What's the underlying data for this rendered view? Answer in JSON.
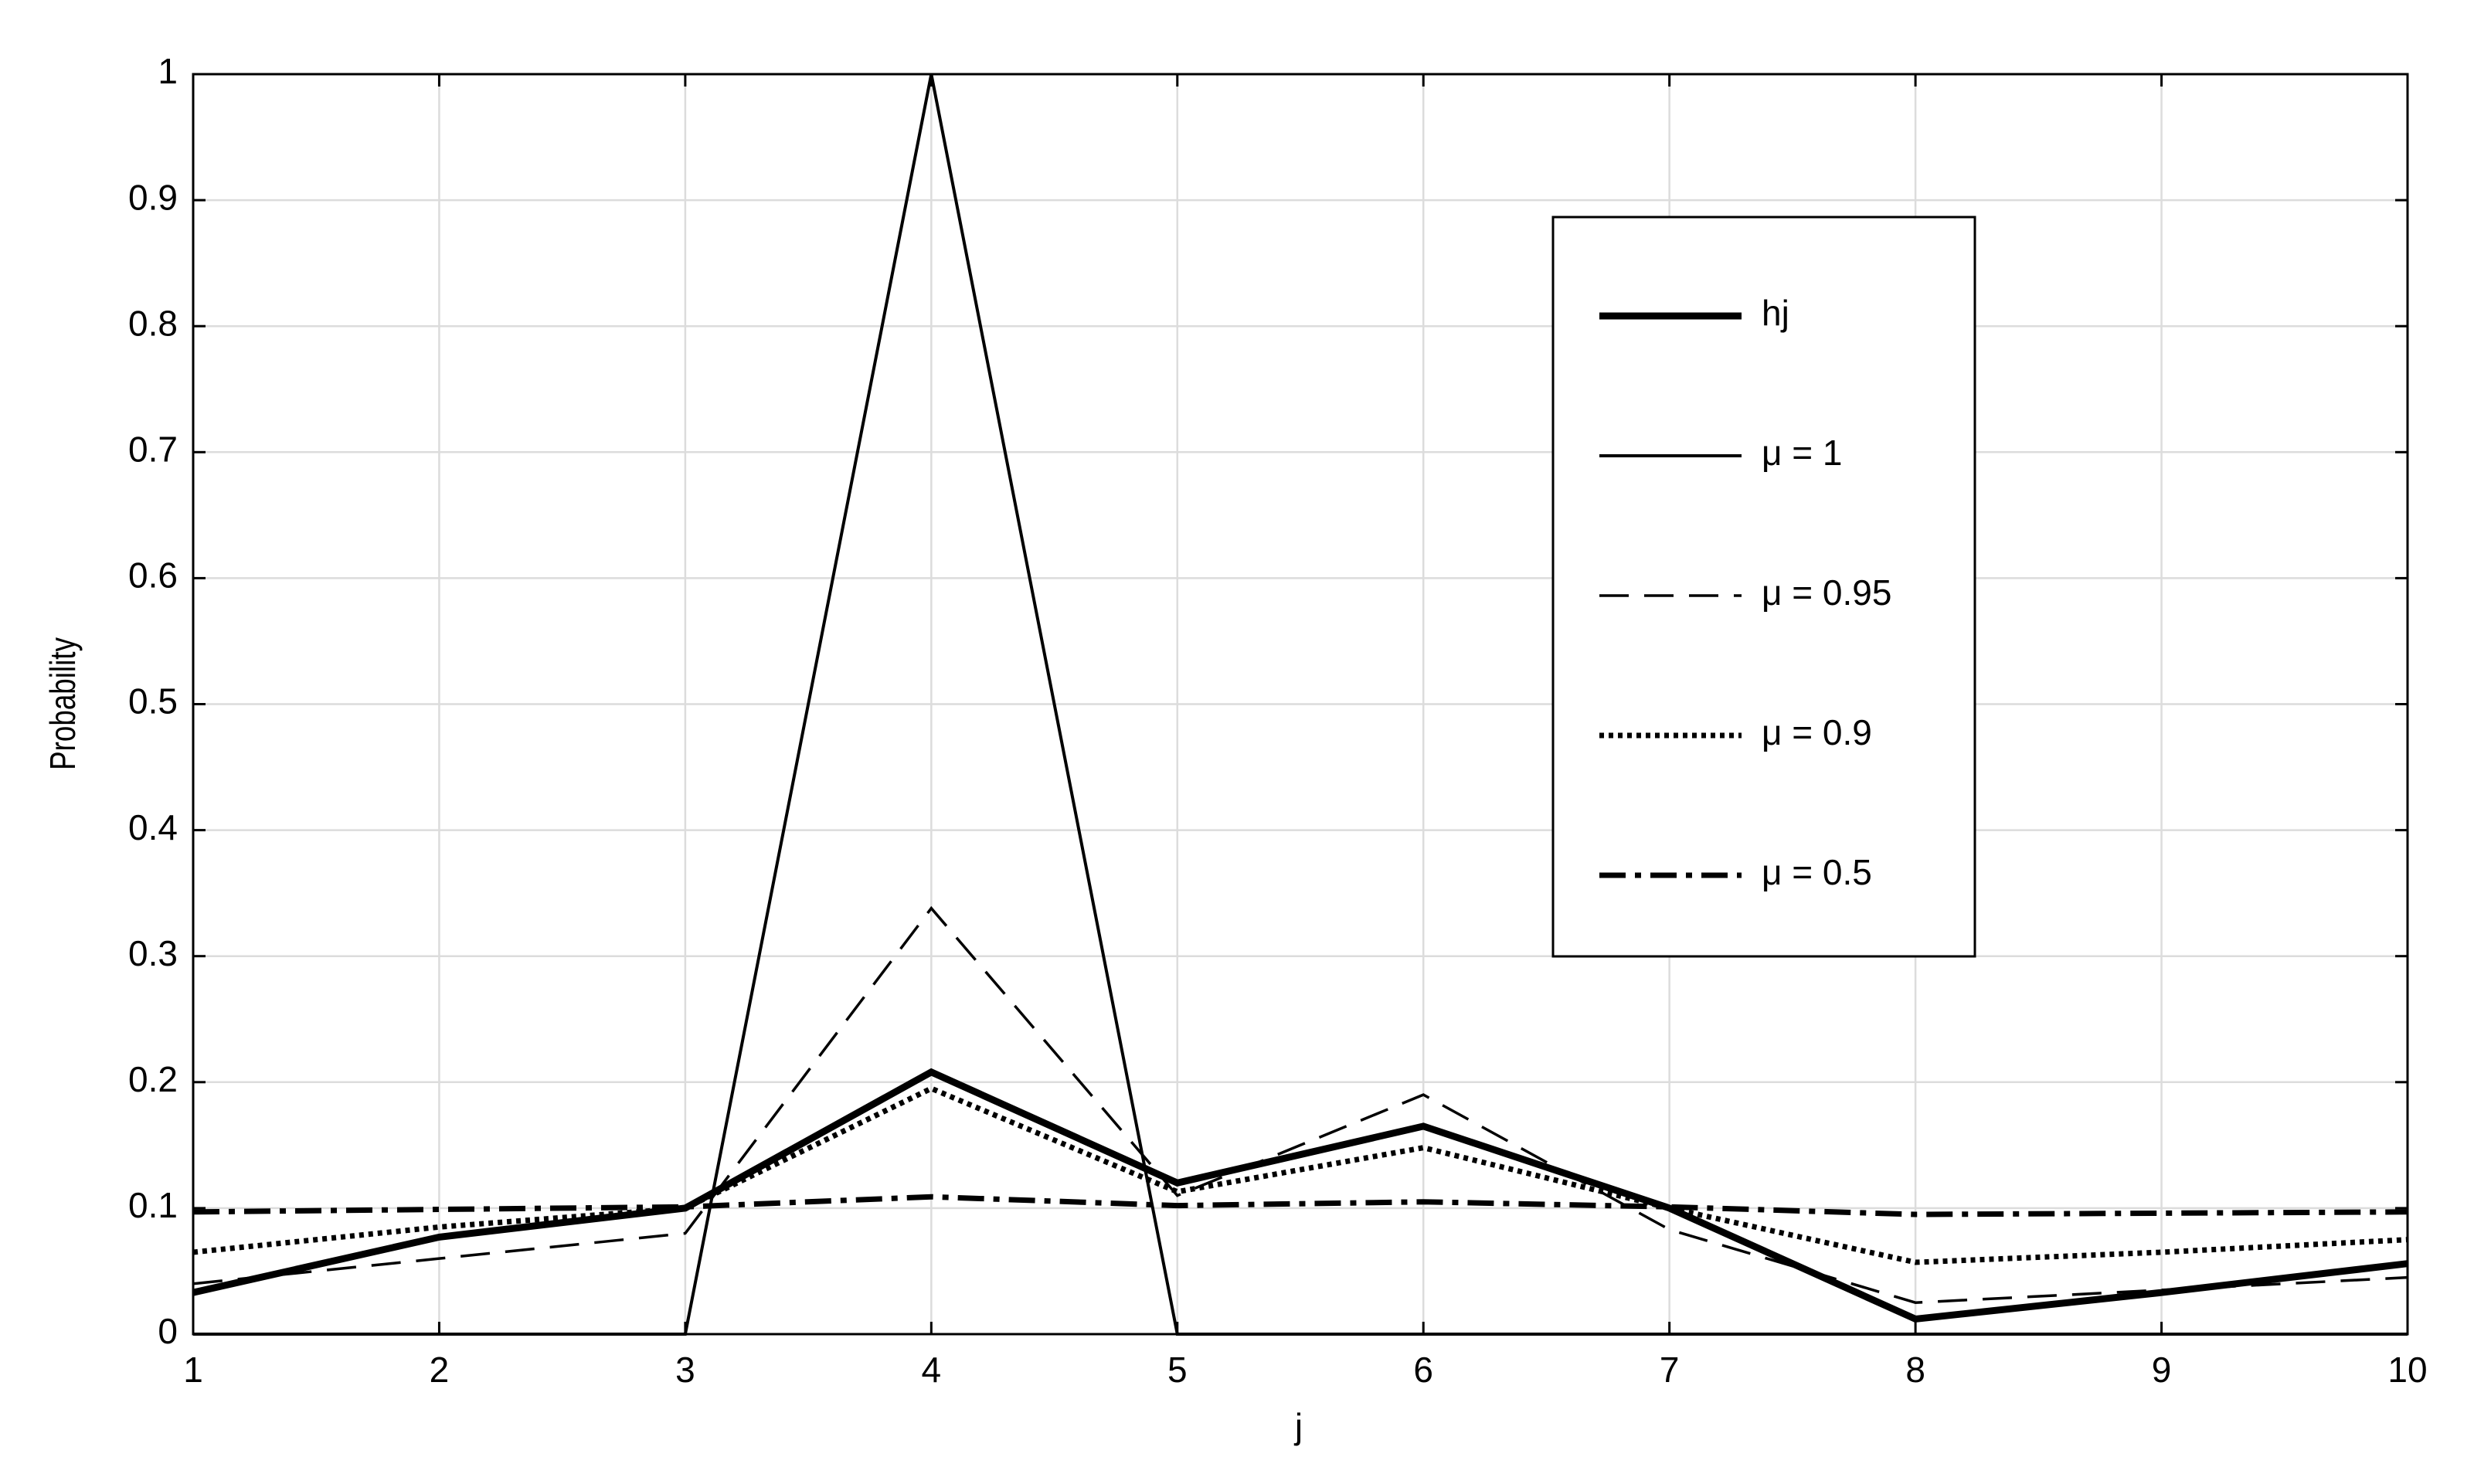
{
  "chart_data": {
    "type": "line",
    "x": [
      1,
      2,
      3,
      4,
      5,
      6,
      7,
      8,
      9,
      10
    ],
    "xlabel": "j",
    "ylabel": "Probability",
    "xlim": [
      1,
      10
    ],
    "xticks": [
      1,
      2,
      3,
      4,
      5,
      6,
      7,
      8,
      9,
      10
    ],
    "ylim": [
      0,
      1
    ],
    "yticks": [
      0,
      0.1,
      0.2,
      0.3,
      0.4,
      0.5,
      0.6,
      0.7,
      0.8,
      0.9,
      1
    ],
    "grid": true,
    "legend": "upper right",
    "series": [
      {
        "name": "hj",
        "color": "#000000",
        "values": [
          0.033,
          0.077,
          0.1,
          0.208,
          0.12,
          0.165,
          0.1,
          0.012,
          0.033,
          0.056
        ]
      },
      {
        "name": "μ = 1",
        "color": "#000000",
        "values": [
          0,
          0,
          0,
          1,
          0,
          0,
          0,
          0,
          0,
          0
        ]
      },
      {
        "name": "μ = 0.95",
        "color": "#000000",
        "values": [
          0.04,
          0.06,
          0.08,
          0.338,
          0.11,
          0.19,
          0.083,
          0.025,
          0.035,
          0.045
        ]
      },
      {
        "name": "μ = 0.9",
        "color": "#000000",
        "values": [
          0.065,
          0.085,
          0.1,
          0.195,
          0.113,
          0.148,
          0.1,
          0.057,
          0.065,
          0.075
        ]
      },
      {
        "name": "μ = 0.5",
        "color": "#000000",
        "values": [
          0.097,
          0.099,
          0.101,
          0.109,
          0.102,
          0.105,
          0.101,
          0.095,
          0.096,
          0.097
        ]
      }
    ]
  }
}
